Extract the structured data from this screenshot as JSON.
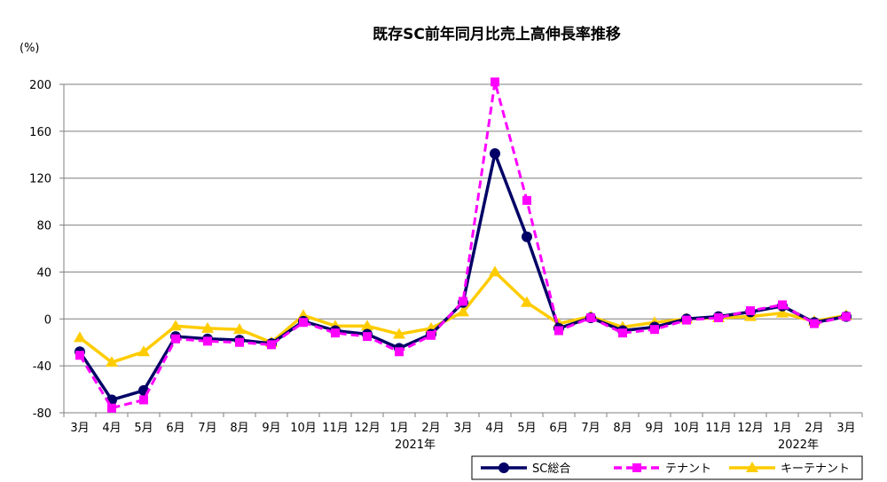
{
  "chart_data": {
    "type": "line",
    "title": "既存SC前年同月比売上高伸長率推移",
    "ylabel": "(%)",
    "xlabel": "",
    "ylim": [
      -80,
      200
    ],
    "yticks": [
      -80,
      -40,
      0,
      40,
      80,
      120,
      160,
      200
    ],
    "grid": true,
    "legend_position": "bottom-right",
    "categories": [
      "3月",
      "4月",
      "5月",
      "6月",
      "7月",
      "8月",
      "9月",
      "10月",
      "11月",
      "12月",
      "1月",
      "2月",
      "3月",
      "4月",
      "5月",
      "6月",
      "7月",
      "8月",
      "9月",
      "10月",
      "11月",
      "12月",
      "1月",
      "2月",
      "3月"
    ],
    "year_labels": [
      {
        "label": "2021年",
        "category_index": 10
      },
      {
        "label": "2022年",
        "category_index": 22
      }
    ],
    "series": [
      {
        "name": "SC総合",
        "color": "#000066",
        "dash": false,
        "marker": "circle",
        "values": [
          -28,
          -69,
          -61,
          -15,
          -17,
          -18,
          -21,
          -2,
          -10,
          -13,
          -25,
          -13,
          14,
          141,
          70,
          -8,
          1,
          -10,
          -7,
          0,
          2,
          6,
          11,
          -3,
          2
        ]
      },
      {
        "name": "テナント",
        "color": "#FF00FF",
        "dash": true,
        "marker": "square",
        "values": [
          -31,
          -76,
          -69,
          -17,
          -19,
          -20,
          -22,
          -3,
          -12,
          -15,
          -28,
          -14,
          15,
          202,
          101,
          -10,
          1,
          -12,
          -9,
          -1,
          1,
          7,
          12,
          -4,
          2
        ]
      },
      {
        "name": "キーテナント",
        "color": "#FFCC00",
        "dash": false,
        "marker": "triangle",
        "values": [
          -16,
          -37,
          -28,
          -6,
          -8,
          -9,
          -20,
          3,
          -6,
          -6,
          -13,
          -8,
          6,
          40,
          14,
          -4,
          2,
          -7,
          -3,
          0,
          1,
          2,
          5,
          -2,
          3
        ]
      }
    ]
  }
}
